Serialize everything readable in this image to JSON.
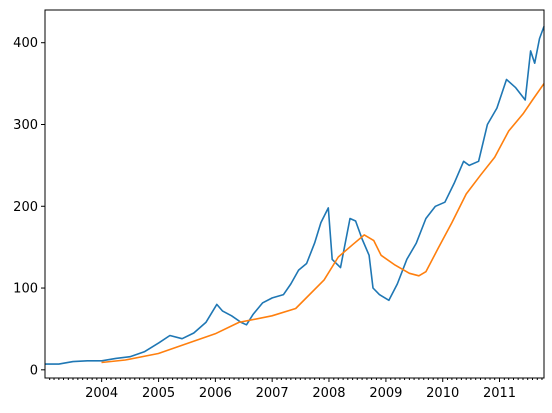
{
  "chart_data": {
    "type": "line",
    "title": "",
    "xlabel": "",
    "ylabel": "",
    "xlim": [
      "2003-01-02",
      "2011-10-14"
    ],
    "ylim": [
      -10,
      440
    ],
    "grid": false,
    "legend": "none",
    "x_ticks": [
      "2004",
      "2005",
      "2006",
      "2007",
      "2008",
      "2009",
      "2010",
      "2011"
    ],
    "y_ticks": [
      0,
      100,
      200,
      300,
      400
    ],
    "series": [
      {
        "color": "#1f77b4",
        "points": [
          [
            "2003-01-02",
            7
          ],
          [
            "2003-04-01",
            7
          ],
          [
            "2003-07-01",
            10
          ],
          [
            "2003-10-01",
            11
          ],
          [
            "2004-01-02",
            11
          ],
          [
            "2004-04-01",
            14
          ],
          [
            "2004-07-01",
            16
          ],
          [
            "2004-10-01",
            22
          ],
          [
            "2005-01-03",
            33
          ],
          [
            "2005-03-15",
            42
          ],
          [
            "2005-06-01",
            38
          ],
          [
            "2005-08-15",
            45
          ],
          [
            "2005-11-01",
            58
          ],
          [
            "2006-01-10",
            80
          ],
          [
            "2006-02-15",
            72
          ],
          [
            "2006-04-15",
            66
          ],
          [
            "2006-06-15",
            58
          ],
          [
            "2006-07-20",
            55
          ],
          [
            "2006-09-01",
            68
          ],
          [
            "2006-11-01",
            82
          ],
          [
            "2007-01-02",
            88
          ],
          [
            "2007-03-15",
            92
          ],
          [
            "2007-05-01",
            105
          ],
          [
            "2007-06-20",
            122
          ],
          [
            "2007-08-10",
            130
          ],
          [
            "2007-10-01",
            155
          ],
          [
            "2007-11-10",
            180
          ],
          [
            "2007-12-28",
            198
          ],
          [
            "2008-01-22",
            135
          ],
          [
            "2008-03-15",
            125
          ],
          [
            "2008-05-15",
            185
          ],
          [
            "2008-06-20",
            182
          ],
          [
            "2008-08-01",
            160
          ],
          [
            "2008-09-15",
            140
          ],
          [
            "2008-10-10",
            100
          ],
          [
            "2008-11-20",
            92
          ],
          [
            "2009-01-20",
            85
          ],
          [
            "2009-03-15",
            105
          ],
          [
            "2009-05-15",
            135
          ],
          [
            "2009-07-15",
            155
          ],
          [
            "2009-09-15",
            185
          ],
          [
            "2009-11-15",
            200
          ],
          [
            "2010-01-15",
            205
          ],
          [
            "2010-03-15",
            228
          ],
          [
            "2010-05-15",
            255
          ],
          [
            "2010-06-20",
            250
          ],
          [
            "2010-08-20",
            255
          ],
          [
            "2010-10-15",
            300
          ],
          [
            "2010-12-15",
            320
          ],
          [
            "2011-02-15",
            355
          ],
          [
            "2011-04-15",
            345
          ],
          [
            "2011-06-15",
            330
          ],
          [
            "2011-07-20",
            390
          ],
          [
            "2011-08-15",
            375
          ],
          [
            "2011-09-15",
            405
          ],
          [
            "2011-10-14",
            420
          ]
        ]
      },
      {
        "color": "#ff7f0e",
        "points": [
          [
            "2003-12-31",
            9
          ],
          [
            "2004-06-01",
            12
          ],
          [
            "2004-12-31",
            20
          ],
          [
            "2005-06-01",
            30
          ],
          [
            "2005-12-31",
            44
          ],
          [
            "2006-06-01",
            58
          ],
          [
            "2006-12-31",
            66
          ],
          [
            "2007-06-01",
            75
          ],
          [
            "2007-12-01",
            110
          ],
          [
            "2008-03-01",
            138
          ],
          [
            "2008-06-01",
            153
          ],
          [
            "2008-08-15",
            165
          ],
          [
            "2008-10-15",
            158
          ],
          [
            "2008-12-01",
            140
          ],
          [
            "2009-03-01",
            128
          ],
          [
            "2009-06-01",
            118
          ],
          [
            "2009-08-01",
            115
          ],
          [
            "2009-09-15",
            120
          ],
          [
            "2009-12-01",
            148
          ],
          [
            "2010-03-01",
            180
          ],
          [
            "2010-06-01",
            215
          ],
          [
            "2010-09-01",
            238
          ],
          [
            "2010-12-01",
            260
          ],
          [
            "2011-03-01",
            292
          ],
          [
            "2011-06-01",
            313
          ],
          [
            "2011-08-01",
            330
          ],
          [
            "2011-10-14",
            350
          ]
        ]
      }
    ]
  }
}
